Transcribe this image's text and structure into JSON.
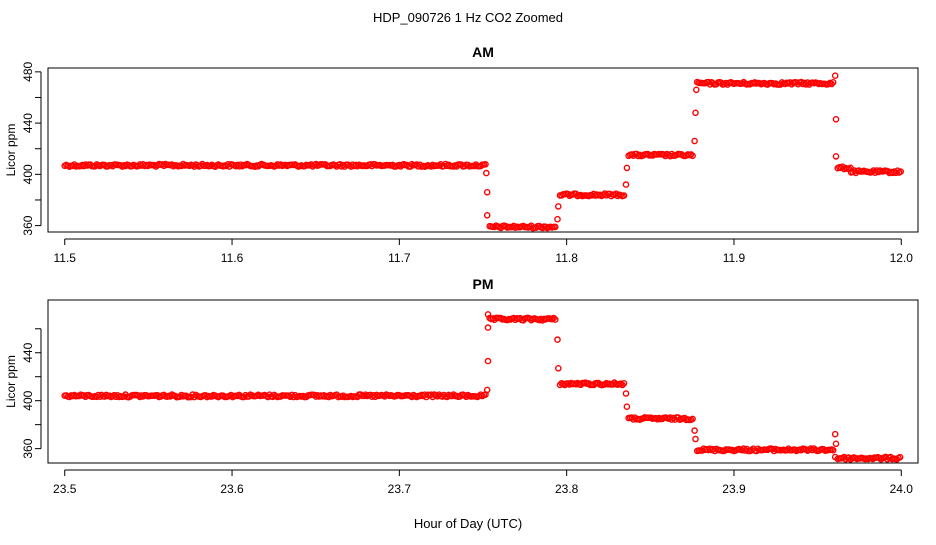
{
  "figure": {
    "title": "HDP_090726  1 Hz CO2 Zoomed",
    "xlabel": "Hour of Day (UTC)"
  },
  "chart_data": [
    {
      "type": "scatter",
      "title": "AM",
      "xlabel": "Hour of Day (UTC)",
      "ylabel": "Licor ppm",
      "xlim": [
        11.5,
        12.0
      ],
      "ylim": [
        355,
        483
      ],
      "xticks": [
        11.5,
        11.6,
        11.7,
        11.8,
        11.9,
        12.0
      ],
      "xtick_labels": [
        "11.5",
        "11.6",
        "11.7",
        "11.8",
        "11.9",
        "12.0"
      ],
      "yticks": [
        360,
        380,
        400,
        420,
        440,
        460,
        480
      ],
      "ytick_labels": [
        "360",
        "",
        "400",
        "",
        "440",
        "",
        "480"
      ],
      "grid": false,
      "marker_color": "#ff0000",
      "segments": [
        {
          "x_start": 11.5,
          "x_end": 11.752,
          "y": 407
        },
        {
          "x_start": 11.754,
          "x_end": 11.794,
          "y": 359
        },
        {
          "x_start": 11.796,
          "x_end": 11.835,
          "y": 384
        },
        {
          "x_start": 11.837,
          "x_end": 11.876,
          "y": 415
        },
        {
          "x_start": 11.878,
          "x_end": 11.96,
          "y": 471
        },
        {
          "x_start": 11.962,
          "x_end": 11.97,
          "y": 405
        },
        {
          "x_start": 11.97,
          "x_end": 12.0,
          "y": 402
        }
      ],
      "transition_points": [
        {
          "x": 11.752,
          "y": 401
        },
        {
          "x": 11.7525,
          "y": 386
        },
        {
          "x": 11.7525,
          "y": 368
        },
        {
          "x": 11.7945,
          "y": 365
        },
        {
          "x": 11.795,
          "y": 375
        },
        {
          "x": 11.8355,
          "y": 392
        },
        {
          "x": 11.836,
          "y": 405
        },
        {
          "x": 11.8765,
          "y": 426
        },
        {
          "x": 11.877,
          "y": 448
        },
        {
          "x": 11.8775,
          "y": 466
        },
        {
          "x": 11.9605,
          "y": 477
        },
        {
          "x": 11.961,
          "y": 443
        },
        {
          "x": 11.961,
          "y": 414
        }
      ]
    },
    {
      "type": "scatter",
      "title": "PM",
      "xlabel": "Hour of Day (UTC)",
      "ylabel": "Licor ppm",
      "xlim": [
        23.5,
        24.0
      ],
      "ylim": [
        348,
        484
      ],
      "xticks": [
        23.5,
        23.6,
        23.7,
        23.8,
        23.9,
        24.0
      ],
      "xtick_labels": [
        "23.5",
        "23.6",
        "23.7",
        "23.8",
        "23.9",
        "24.0"
      ],
      "yticks": [
        360,
        380,
        400,
        420,
        440,
        460
      ],
      "ytick_labels": [
        "360",
        "",
        "400",
        "",
        "440",
        ""
      ],
      "grid": false,
      "marker_color": "#ff0000",
      "segments": [
        {
          "x_start": 23.5,
          "x_end": 23.752,
          "y": 404
        },
        {
          "x_start": 23.754,
          "x_end": 23.794,
          "y": 468
        },
        {
          "x_start": 23.796,
          "x_end": 23.835,
          "y": 414
        },
        {
          "x_start": 23.837,
          "x_end": 23.876,
          "y": 385
        },
        {
          "x_start": 23.878,
          "x_end": 23.96,
          "y": 359
        },
        {
          "x_start": 23.962,
          "x_end": 24.0,
          "y": 352
        }
      ],
      "transition_points": [
        {
          "x": 23.7525,
          "y": 409
        },
        {
          "x": 23.753,
          "y": 433
        },
        {
          "x": 23.753,
          "y": 461
        },
        {
          "x": 23.753,
          "y": 472
        },
        {
          "x": 23.7945,
          "y": 451
        },
        {
          "x": 23.795,
          "y": 427
        },
        {
          "x": 23.8355,
          "y": 406
        },
        {
          "x": 23.836,
          "y": 395
        },
        {
          "x": 23.8765,
          "y": 375
        },
        {
          "x": 23.877,
          "y": 368
        },
        {
          "x": 23.9605,
          "y": 372
        },
        {
          "x": 23.961,
          "y": 364
        },
        {
          "x": 23.9605,
          "y": 353
        }
      ]
    }
  ]
}
